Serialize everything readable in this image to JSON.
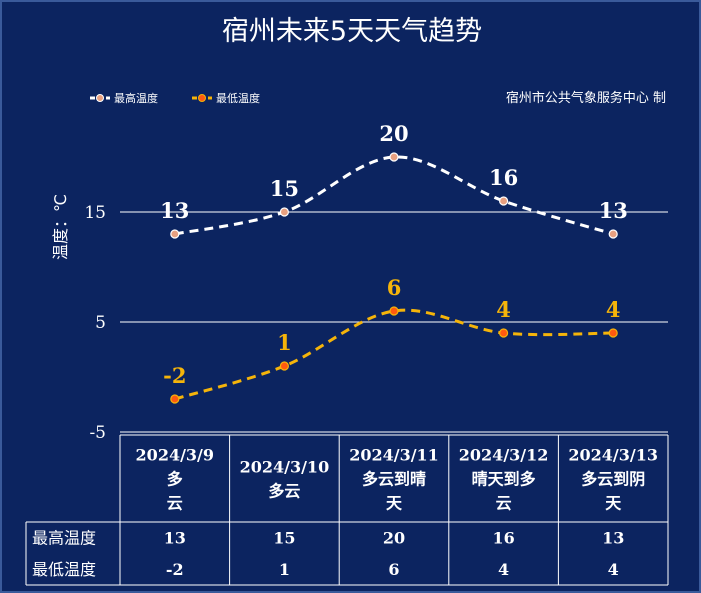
{
  "title": "宿州未来5天天气趋势",
  "credit": "宿州市公共气象服务中心  制",
  "ylabel": "温度：℃",
  "colors": {
    "background": "#0c2460",
    "high": "#ffffff",
    "low": "#f5b40a"
  },
  "legend": {
    "high": "最高温度",
    "low": "最低温度",
    "placement": "top-left"
  },
  "table": {
    "row_labels": [
      "最高温度",
      "最低温度"
    ],
    "rows": [
      [
        "2024/3/9",
        "多",
        "云"
      ],
      [
        "2024/3/10",
        "多云"
      ],
      [
        "2024/3/11",
        "多云到晴",
        "天"
      ],
      [
        "2024/3/12",
        "晴天到多",
        "云"
      ],
      [
        "2024/3/13",
        "多云到阴",
        "天"
      ]
    ]
  },
  "chart_data": {
    "type": "line",
    "categories": [
      "2024/3/9多云",
      "2024/3/10多云",
      "2024/3/11多云到晴天",
      "2024/3/12晴天到多云",
      "2024/3/13多云到阴天"
    ],
    "series": [
      {
        "name": "最高温度",
        "values": [
          13,
          15,
          20,
          16,
          13
        ],
        "color": "#ffffff",
        "style": "dashed"
      },
      {
        "name": "最低温度",
        "values": [
          -2,
          1,
          6,
          4,
          4
        ],
        "color": "#f5b40a",
        "style": "dashed"
      }
    ],
    "ylabel": "温度：℃",
    "yticks": [
      15,
      5,
      -5
    ],
    "ylim": [
      -5,
      25
    ],
    "grid": true
  }
}
